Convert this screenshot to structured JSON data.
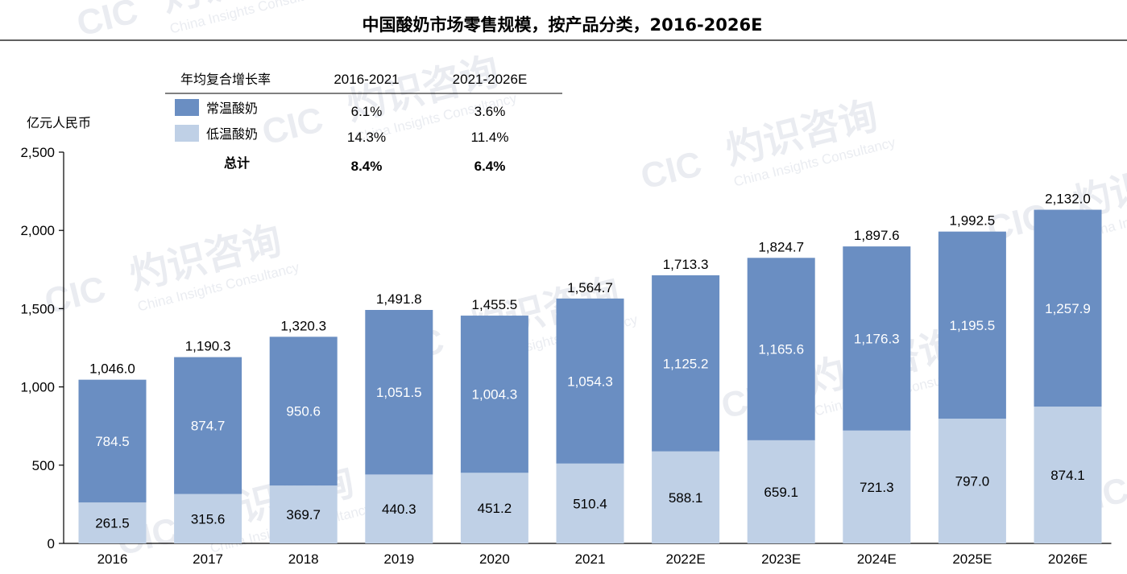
{
  "title": "中国酸奶市场零售规模，按产品分类，2016-2026E",
  "y_unit_label": "亿元人民币",
  "cagr_table": {
    "header": [
      "年均复合增长率",
      "2016-2021",
      "2021-2026E"
    ],
    "rows": [
      {
        "label": "常温酸奶",
        "values": [
          "6.1%",
          "3.6%"
        ],
        "swatch": "#6A8EC2"
      },
      {
        "label": "低温酸奶",
        "values": [
          "14.3%",
          "11.4%"
        ],
        "swatch": "#BFD0E6"
      },
      {
        "label": "总计",
        "values": [
          "8.4%",
          "6.4%"
        ],
        "bold": true
      }
    ]
  },
  "colors": {
    "ambient": "#6A8EC2",
    "chilled": "#BFD0E6",
    "axis": "#000000",
    "watermark": "#d9dee6"
  },
  "watermark": {
    "text_cn": "灼识咨询",
    "text_logo": "CIC",
    "text_en": "China Insights Consultancy"
  },
  "chart_data": {
    "type": "bar",
    "stacked": true,
    "categories": [
      "2016",
      "2017",
      "2018",
      "2019",
      "2020",
      "2021",
      "2022E",
      "2023E",
      "2024E",
      "2025E",
      "2026E"
    ],
    "series": [
      {
        "name": "低温酸奶",
        "values": [
          261.5,
          315.6,
          369.7,
          440.3,
          451.2,
          510.4,
          588.1,
          659.1,
          721.3,
          797.0,
          874.1
        ],
        "labels": [
          "261.5",
          "315.6",
          "369.7",
          "440.3",
          "451.2",
          "510.4",
          "588.1",
          "659.1",
          "721.3",
          "797.0",
          "874.1"
        ],
        "color": "#BFD0E6"
      },
      {
        "name": "常温酸奶",
        "values": [
          784.5,
          874.7,
          950.6,
          1051.5,
          1004.3,
          1054.3,
          1125.2,
          1165.6,
          1176.3,
          1195.5,
          1257.9
        ],
        "labels": [
          "784.5",
          "874.7",
          "950.6",
          "1,051.5",
          "1,004.3",
          "1,054.3",
          "1,125.2",
          "1,165.6",
          "1,176.3",
          "1,195.5",
          "1,257.9"
        ],
        "color": "#6A8EC2"
      }
    ],
    "totals": [
      1046.0,
      1190.3,
      1320.3,
      1491.8,
      1455.5,
      1564.7,
      1713.3,
      1824.7,
      1897.6,
      1992.5,
      2132.0
    ],
    "total_labels": [
      "1,046.0",
      "1,190.3",
      "1,320.3",
      "1,491.8",
      "1,455.5",
      "1,564.7",
      "1,713.3",
      "1,824.7",
      "1,897.6",
      "1,992.5",
      "2,132.0"
    ],
    "yticks": [
      0,
      500,
      1000,
      1500,
      2000,
      2500
    ],
    "ytick_labels": [
      "0",
      "500",
      "1,000",
      "1,500",
      "2,000",
      "2,500"
    ],
    "ylim": [
      0,
      2500
    ],
    "grid": false,
    "legend": "top-left"
  }
}
